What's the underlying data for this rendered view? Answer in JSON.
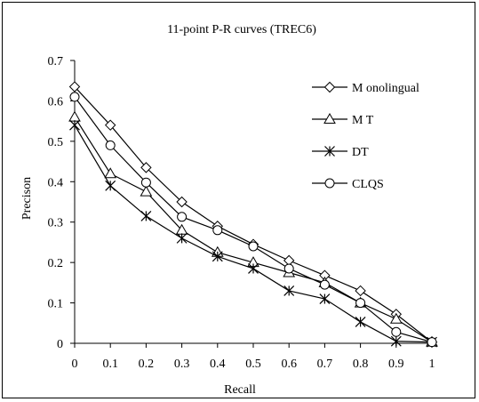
{
  "chart_data": {
    "type": "line",
    "title": "11-point P-R curves (TREC6)",
    "xlabel": "Recall",
    "ylabel": "Precison",
    "xlim": [
      0,
      1
    ],
    "ylim": [
      0,
      0.7
    ],
    "x": [
      0,
      0.1,
      0.2,
      0.3,
      0.4,
      0.5,
      0.6,
      0.7,
      0.8,
      0.9,
      1
    ],
    "xtick_labels": [
      "0",
      "0.1",
      "0.2",
      "0.3",
      "0.4",
      "0.5",
      "0.6",
      "0.7",
      "0.8",
      "0.9",
      "1"
    ],
    "yticks": [
      0,
      0.1,
      0.2,
      0.3,
      0.4,
      0.5,
      0.6,
      0.7
    ],
    "ytick_labels": [
      "0",
      "0.1",
      "0.2",
      "0.3",
      "0.4",
      "0.5",
      "0.6",
      "0.7"
    ],
    "grid": false,
    "legend_position": "top-right",
    "series": [
      {
        "name": "M onolingual",
        "marker": "diamond",
        "values": [
          0.635,
          0.54,
          0.435,
          0.35,
          0.29,
          0.245,
          0.205,
          0.168,
          0.13,
          0.072,
          0.003
        ]
      },
      {
        "name": "M T",
        "marker": "triangle",
        "values": [
          0.56,
          0.42,
          0.375,
          0.28,
          0.225,
          0.2,
          0.175,
          0.15,
          0.1,
          0.06,
          0.003
        ]
      },
      {
        "name": "DT",
        "marker": "star",
        "values": [
          0.54,
          0.39,
          0.315,
          0.26,
          0.215,
          0.185,
          0.13,
          0.11,
          0.053,
          0.005,
          0.003
        ]
      },
      {
        "name": "CLQS",
        "marker": "circle",
        "values": [
          0.61,
          0.49,
          0.398,
          0.313,
          0.28,
          0.24,
          0.185,
          0.145,
          0.1,
          0.028,
          0.003
        ]
      }
    ]
  }
}
